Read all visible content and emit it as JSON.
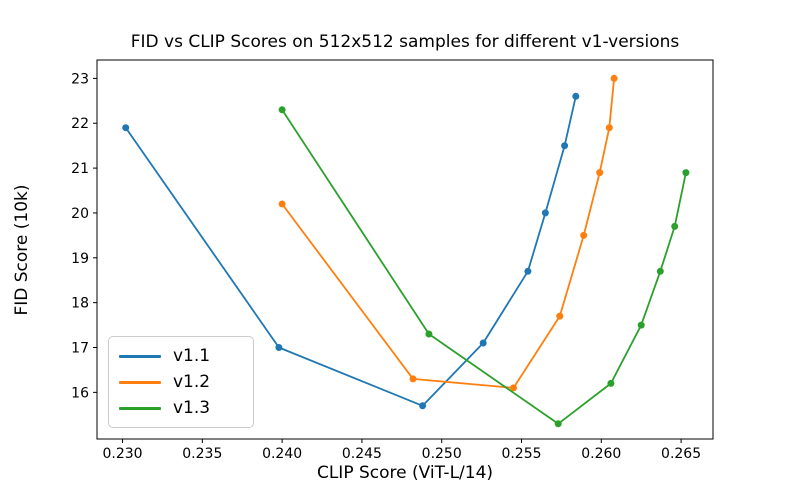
{
  "chart_data": {
    "type": "line",
    "title": "FID vs CLIP Scores on 512x512 samples for different v1-versions",
    "xlabel": "CLIP Score (ViT-L/14)",
    "ylabel": "FID Score (10k)",
    "grid": false,
    "marker": "o",
    "legend_position": "lower left",
    "xlim": [
      0.2284,
      0.267
    ],
    "ylim": [
      14.96,
      23.41
    ],
    "x_ticks": [
      0.23,
      0.235,
      0.24,
      0.245,
      0.25,
      0.255,
      0.26,
      0.265
    ],
    "x_tick_labels": [
      "0.230",
      "0.235",
      "0.240",
      "0.245",
      "0.250",
      "0.255",
      "0.260",
      "0.265"
    ],
    "y_ticks": [
      16,
      17,
      18,
      19,
      20,
      21,
      22,
      23
    ],
    "y_tick_labels": [
      "16",
      "17",
      "18",
      "19",
      "20",
      "21",
      "22",
      "23"
    ],
    "series": [
      {
        "name": "v1.1",
        "color": "#1f77b4",
        "points": [
          [
            0.2302,
            21.9
          ],
          [
            0.2398,
            17.0
          ],
          [
            0.2488,
            15.7
          ],
          [
            0.2526,
            17.1
          ],
          [
            0.2554,
            18.7
          ],
          [
            0.2565,
            20.0
          ],
          [
            0.2577,
            21.5
          ],
          [
            0.2584,
            22.6
          ]
        ]
      },
      {
        "name": "v1.2",
        "color": "#ff7f0e",
        "points": [
          [
            0.24,
            20.2
          ],
          [
            0.2482,
            16.3
          ],
          [
            0.2545,
            16.1
          ],
          [
            0.2574,
            17.7
          ],
          [
            0.2589,
            19.5
          ],
          [
            0.2599,
            20.9
          ],
          [
            0.2605,
            21.9
          ],
          [
            0.2608,
            23.0
          ]
        ]
      },
      {
        "name": "v1.3",
        "color": "#2ca02c",
        "points": [
          [
            0.24,
            22.3
          ],
          [
            0.2492,
            17.3
          ],
          [
            0.2573,
            15.3
          ],
          [
            0.2606,
            16.2
          ],
          [
            0.2625,
            17.5
          ],
          [
            0.2637,
            18.7
          ],
          [
            0.2646,
            19.7
          ],
          [
            0.2653,
            20.9
          ]
        ]
      }
    ]
  }
}
